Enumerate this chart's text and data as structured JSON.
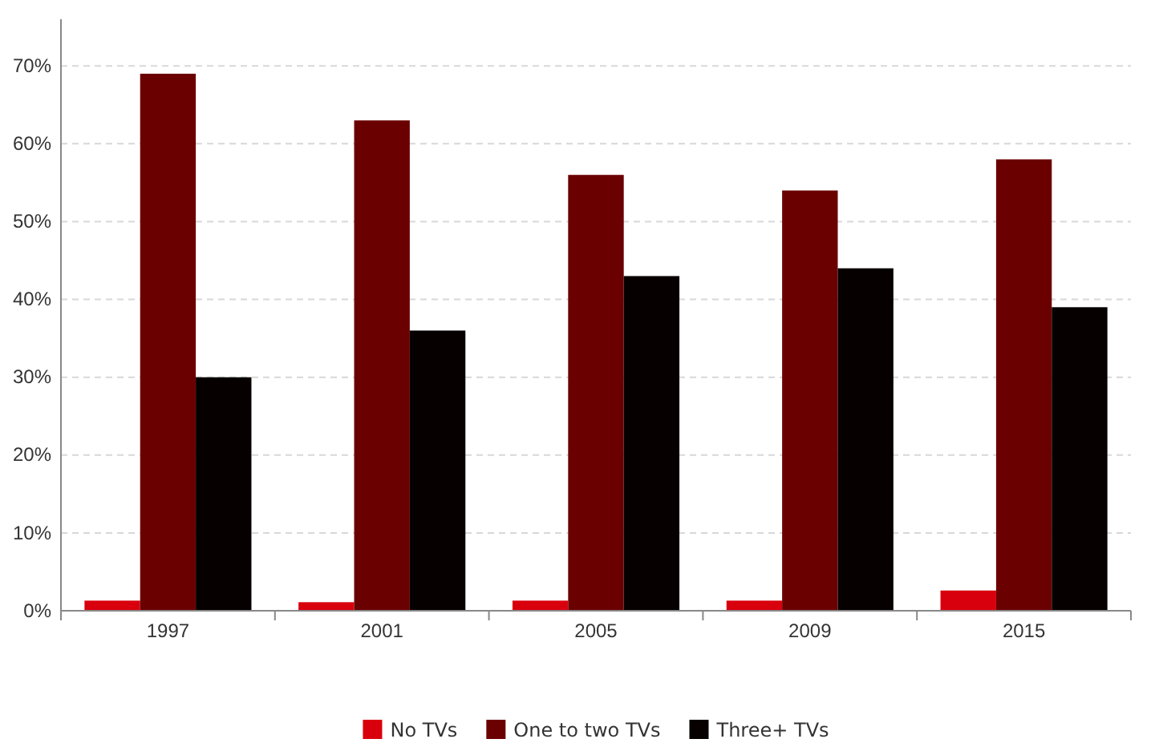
{
  "chart_data": {
    "type": "bar",
    "categories": [
      "1997",
      "2001",
      "2005",
      "2009",
      "2015"
    ],
    "series": [
      {
        "name": "No TVs",
        "color": "#d9000d",
        "values": [
          1.3,
          1.1,
          1.3,
          1.3,
          2.6
        ]
      },
      {
        "name": "One to two TVs",
        "color": "#6b0000",
        "values": [
          69,
          63,
          56,
          54,
          58
        ]
      },
      {
        "name": "Three+ TVs",
        "color": "#060000",
        "values": [
          30,
          36,
          43,
          44,
          39
        ]
      }
    ],
    "ylim": [
      0,
      76
    ],
    "yticks": [
      {
        "value": 0,
        "label": "0%"
      },
      {
        "value": 10,
        "label": "10%"
      },
      {
        "value": 20,
        "label": "20%"
      },
      {
        "value": 30,
        "label": "30%"
      },
      {
        "value": 40,
        "label": "40%"
      },
      {
        "value": 50,
        "label": "50%"
      },
      {
        "value": 60,
        "label": "60%"
      },
      {
        "value": 70,
        "label": "70%"
      }
    ],
    "grid": "y",
    "legend": "bottom"
  }
}
